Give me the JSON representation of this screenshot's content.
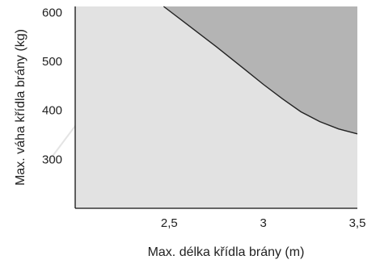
{
  "chart_data": {
    "type": "area",
    "xlabel": "Max. délka křídla brány (m)",
    "ylabel": "Max. váha křídla brány (kg)",
    "xlim": [
      2.0,
      3.5
    ],
    "ylim": [
      200,
      612
    ],
    "x_ticks": [
      2.5,
      3,
      3.5
    ],
    "x_tick_labels": [
      "2,5",
      "3",
      "3,5"
    ],
    "y_ticks": [
      300,
      400,
      500,
      600
    ],
    "y_tick_labels": [
      "300",
      "400",
      "500",
      "600"
    ],
    "series": [
      {
        "x": [
          2.47,
          2.6,
          2.75,
          2.9,
          3.0,
          3.1,
          3.2,
          3.3,
          3.4,
          3.5
        ],
        "y": [
          612,
          574,
          530,
          484,
          453,
          424,
          397,
          377,
          362,
          352
        ]
      }
    ],
    "colors": {
      "allowed_area": "#e2e2e2",
      "exceeded_area": "#b4b4b4",
      "curve": "#222222",
      "axes": "#111111"
    },
    "grid": false,
    "legend": "none"
  }
}
